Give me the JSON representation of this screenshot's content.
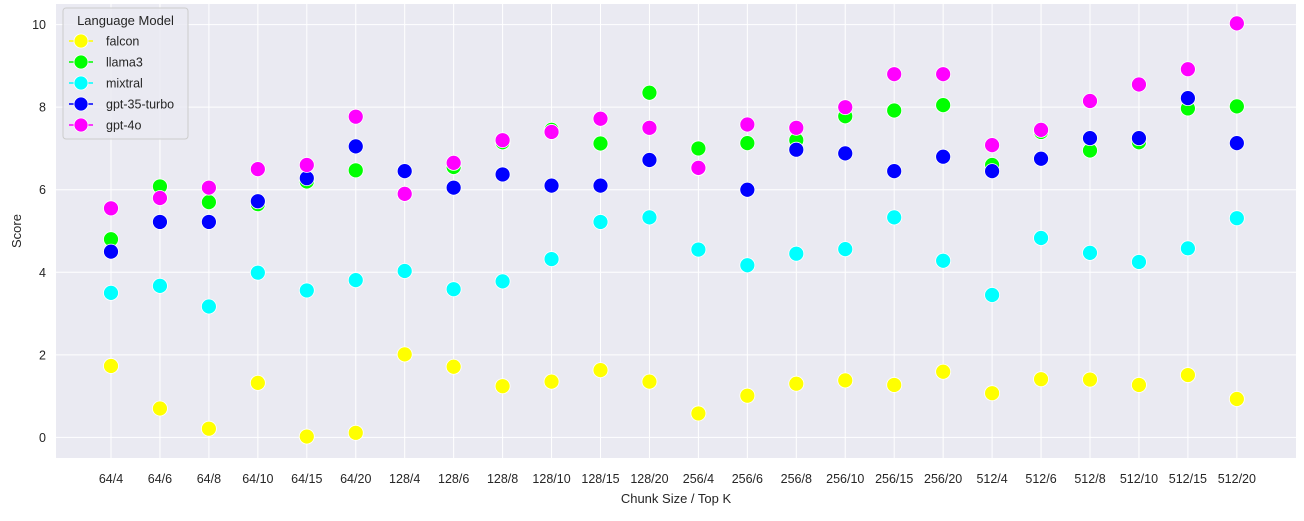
{
  "chart_data": {
    "type": "scatter",
    "title": "",
    "xlabel": "Chunk Size / Top K",
    "ylabel": "Score",
    "ylim": [
      -0.5,
      10.5
    ],
    "yticks": [
      0,
      2,
      4,
      6,
      8,
      10
    ],
    "grid": true,
    "legend": {
      "title": "Language Model",
      "placement": "top-left"
    },
    "categories": [
      "64/4",
      "64/6",
      "64/8",
      "64/10",
      "64/15",
      "64/20",
      "128/4",
      "128/6",
      "128/8",
      "128/10",
      "128/15",
      "128/20",
      "256/4",
      "256/6",
      "256/8",
      "256/10",
      "256/15",
      "256/20",
      "512/4",
      "512/6",
      "512/8",
      "512/10",
      "512/15",
      "512/20"
    ],
    "series": [
      {
        "name": "falcon",
        "color": "#ffff00",
        "values": [
          1.73,
          0.7,
          0.21,
          1.32,
          0.02,
          0.11,
          2.01,
          1.71,
          1.24,
          1.35,
          1.63,
          1.35,
          0.58,
          1.01,
          1.3,
          1.38,
          1.27,
          1.59,
          1.07,
          1.41,
          1.4,
          1.27,
          1.51,
          0.93
        ]
      },
      {
        "name": "llama3",
        "color": "#00ff00",
        "values": [
          4.8,
          6.08,
          5.7,
          5.65,
          6.2,
          6.47,
          5.9,
          6.55,
          7.15,
          7.45,
          7.12,
          8.35,
          7.0,
          7.13,
          7.2,
          7.78,
          7.92,
          8.05,
          6.6,
          7.4,
          6.95,
          7.15,
          7.97,
          8.02
        ]
      },
      {
        "name": "mixtral",
        "color": "#00ffff",
        "values": [
          3.5,
          3.67,
          3.17,
          3.99,
          3.56,
          3.81,
          4.03,
          3.59,
          3.78,
          4.32,
          5.22,
          5.33,
          4.55,
          4.17,
          4.45,
          4.56,
          5.33,
          4.28,
          3.45,
          4.83,
          4.47,
          4.25,
          4.58,
          5.31
        ]
      },
      {
        "name": "gpt-35-turbo",
        "color": "#0000ff",
        "values": [
          4.5,
          5.22,
          5.22,
          5.72,
          6.28,
          7.05,
          6.45,
          6.05,
          6.37,
          6.1,
          6.1,
          6.72,
          6.52,
          6.0,
          6.97,
          6.88,
          6.45,
          6.8,
          6.45,
          6.75,
          7.25,
          7.25,
          8.22,
          7.13
        ]
      },
      {
        "name": "gpt-4o",
        "color": "#ff00ff",
        "values": [
          5.55,
          5.8,
          6.05,
          6.5,
          6.6,
          7.77,
          5.9,
          6.65,
          7.2,
          7.4,
          7.72,
          7.5,
          6.53,
          7.58,
          7.5,
          8.0,
          8.8,
          8.8,
          7.08,
          7.45,
          8.15,
          8.55,
          8.92,
          10.03
        ]
      }
    ]
  }
}
